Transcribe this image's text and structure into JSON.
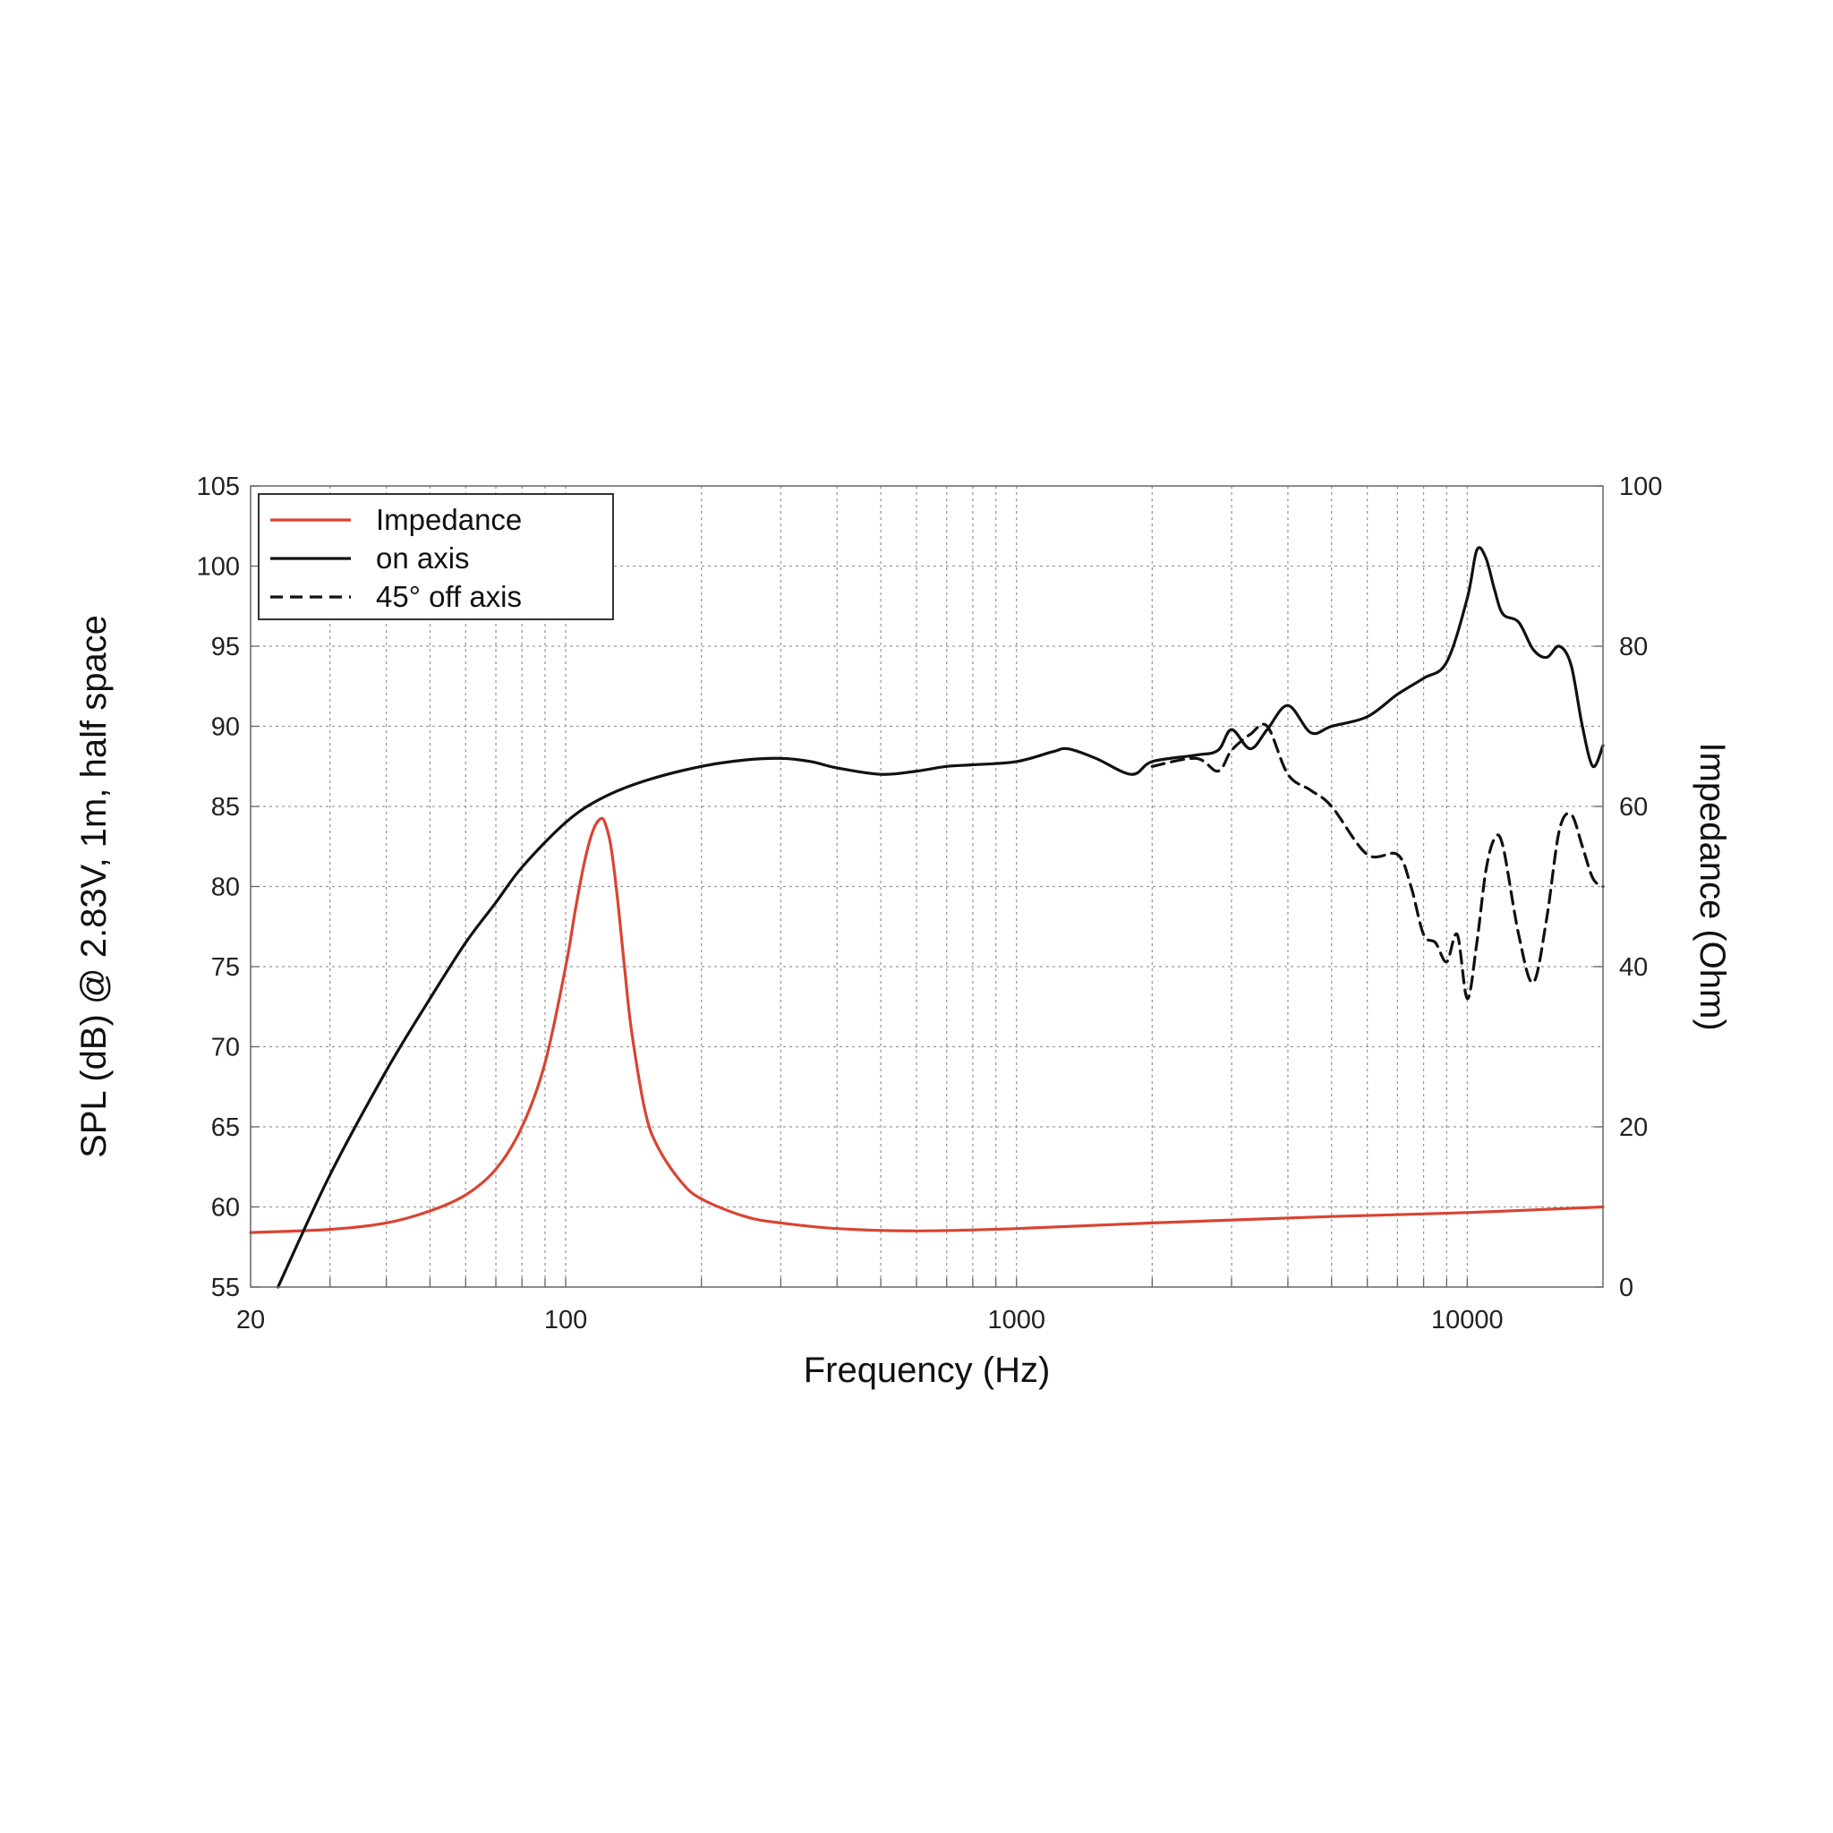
{
  "chart_data": {
    "type": "line",
    "title": "",
    "xlabel": "Frequency (Hz)",
    "ylabel_left": "SPL (dB) @ 2.83V, 1m, half space",
    "ylabel_right": "Impedance (Ohm)",
    "x_scale": "log",
    "xlim": [
      20,
      20000
    ],
    "ylim_left": [
      55,
      105
    ],
    "ylim_right": [
      0,
      100
    ],
    "x_ticks": [
      20,
      100,
      1000,
      10000
    ],
    "x_tick_labels": [
      "20",
      "100",
      "1000",
      "10000"
    ],
    "y_ticks_left": [
      55,
      60,
      65,
      70,
      75,
      80,
      85,
      90,
      95,
      100,
      105
    ],
    "y_tick_labels_left": [
      "55",
      "60",
      "65",
      "70",
      "75",
      "80",
      "85",
      "90",
      "95",
      "100",
      "105"
    ],
    "y_ticks_right": [
      0,
      20,
      40,
      60,
      80,
      100
    ],
    "y_tick_labels_right": [
      "0",
      "20",
      "40",
      "60",
      "80",
      "100"
    ],
    "grid": true,
    "legend_position": "top-left",
    "colors": {
      "impedance": "#d94432",
      "on_axis": "#111111",
      "off_axis": "#111111"
    },
    "series": [
      {
        "name": "Impedance",
        "axis": "right",
        "color": "#d94432",
        "style": "solid",
        "x": [
          20,
          30,
          40,
          50,
          60,
          70,
          80,
          90,
          100,
          105,
          110,
          115,
          120,
          123,
          126,
          130,
          135,
          140,
          150,
          160,
          180,
          200,
          250,
          300,
          400,
          600,
          1000,
          2000,
          5000,
          10000,
          20000
        ],
        "y": [
          6.8,
          7.2,
          8.0,
          9.5,
          11.5,
          14.7,
          20.0,
          28.0,
          40.0,
          47.0,
          53.0,
          57.0,
          58.5,
          57.5,
          55.0,
          49.0,
          40.0,
          32.0,
          22.0,
          17.5,
          13.2,
          11.0,
          8.8,
          8.0,
          7.3,
          7.0,
          7.3,
          8.0,
          8.8,
          9.3,
          10.0
        ]
      },
      {
        "name": "on axis",
        "axis": "left",
        "color": "#111111",
        "style": "solid",
        "x": [
          23,
          30,
          40,
          50,
          60,
          70,
          80,
          100,
          120,
          150,
          200,
          250,
          300,
          350,
          400,
          500,
          600,
          700,
          800,
          1000,
          1200,
          1300,
          1500,
          1800,
          2000,
          2500,
          2800,
          3000,
          3300,
          3600,
          4000,
          4500,
          5000,
          6000,
          7000,
          8000,
          9000,
          10000,
          10500,
          11000,
          11500,
          12000,
          13000,
          14000,
          15000,
          16000,
          17000,
          18000,
          19000,
          20000
        ],
        "y": [
          55.0,
          62.0,
          68.5,
          73.0,
          76.5,
          79.0,
          81.2,
          84.0,
          85.5,
          86.6,
          87.5,
          87.9,
          88.0,
          87.8,
          87.4,
          87.0,
          87.2,
          87.5,
          87.6,
          87.8,
          88.4,
          88.6,
          88.0,
          87.0,
          87.8,
          88.2,
          88.5,
          89.8,
          88.6,
          89.8,
          91.3,
          89.6,
          90.0,
          90.6,
          92.0,
          93.0,
          94.0,
          98.0,
          101.0,
          100.5,
          98.5,
          97.0,
          96.5,
          94.8,
          94.3,
          95.0,
          93.8,
          90.0,
          87.5,
          88.8
        ]
      },
      {
        "name": "45° off axis",
        "axis": "left",
        "color": "#111111",
        "style": "dashed",
        "x": [
          2000,
          2500,
          2800,
          3000,
          3300,
          3600,
          4000,
          4500,
          5000,
          6000,
          7000,
          7500,
          8000,
          8500,
          9000,
          9500,
          10000,
          10500,
          11000,
          11500,
          12000,
          13000,
          14000,
          15000,
          16000,
          17000,
          18000,
          19000,
          20000
        ],
        "y": [
          87.5,
          88.0,
          87.2,
          88.5,
          89.5,
          90.0,
          87.0,
          86.0,
          85.0,
          82.0,
          82.0,
          80.0,
          77.0,
          76.5,
          75.3,
          77.0,
          73.0,
          76.5,
          81.0,
          83.0,
          82.5,
          77.0,
          74.0,
          78.0,
          83.5,
          84.5,
          82.5,
          80.5,
          80.0
        ]
      }
    ]
  }
}
